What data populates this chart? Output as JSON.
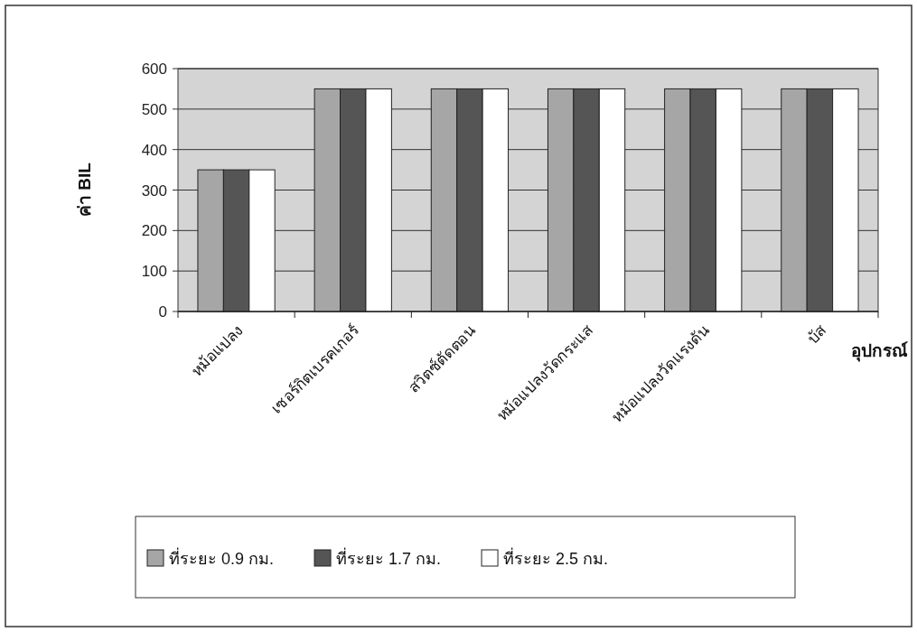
{
  "chart_data": {
    "type": "bar",
    "xlabel": "อุปกรณ์",
    "ylabel": "ค่า BIL",
    "categories": [
      "หม้อแปลง",
      "เซอร์กิตเบรคเกอร์",
      "สวิตซ์ตัดตอน",
      "หม้อแปลงวัดกระแส",
      "หม้อแปลงวัดแรงดัน",
      "บัส"
    ],
    "series": [
      {
        "name": "ที่ระยะ 0.9 กม.",
        "color": "#a6a6a6",
        "values": [
          350,
          550,
          550,
          550,
          550,
          550
        ]
      },
      {
        "name": "ที่ระยะ 1.7 กม.",
        "color": "#555555",
        "values": [
          350,
          550,
          550,
          550,
          550,
          550
        ]
      },
      {
        "name": "ที่ระยะ 2.5 กม.",
        "color": "#ffffff",
        "values": [
          350,
          550,
          550,
          550,
          550,
          550
        ]
      }
    ],
    "ylim": [
      0,
      600
    ],
    "yticks": [
      0,
      100,
      200,
      300,
      400,
      500,
      600
    ],
    "grid": "y",
    "legend": "bottom"
  }
}
